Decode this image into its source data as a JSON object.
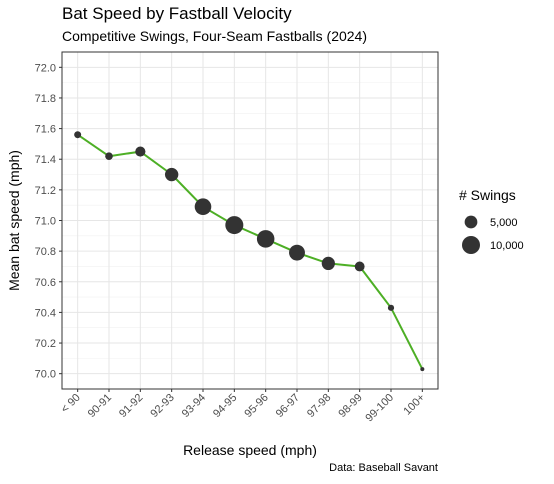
{
  "title": "Bat Speed by Fastball Velocity",
  "subtitle": "Competitive Swings, Four-Seam Fastballs (2024)",
  "caption": "Data: Baseball Savant",
  "colors": {
    "line": "#4daf25",
    "point": "#333333",
    "grid": "#e6e6e6",
    "panel_border": "#333333"
  },
  "chart_data": {
    "type": "line",
    "xlabel": "Release speed (mph)",
    "ylabel": "Mean bat speed (mph)",
    "categories": [
      "< 90",
      "90-91",
      "91-92",
      "92-93",
      "93-94",
      "94-95",
      "95-96",
      "96-97",
      "97-98",
      "98-99",
      "99-100",
      "100+"
    ],
    "values": [
      71.56,
      71.42,
      71.45,
      71.3,
      71.09,
      70.97,
      70.88,
      70.79,
      70.72,
      70.7,
      70.43,
      70.03
    ],
    "swings": [
      1500,
      1800,
      3200,
      5500,
      8500,
      10000,
      9500,
      7800,
      5400,
      3000,
      1200,
      150
    ],
    "ylim": [
      69.9,
      72.1
    ],
    "yticks": [
      70.0,
      70.2,
      70.4,
      70.6,
      70.8,
      71.0,
      71.2,
      71.4,
      71.6,
      71.8,
      72.0
    ],
    "grid": true,
    "legend": {
      "title": "# Swings",
      "position": "right",
      "entries": [
        {
          "label": "5,000",
          "value": 5000
        },
        {
          "label": "10,000",
          "value": 10000
        }
      ]
    }
  }
}
